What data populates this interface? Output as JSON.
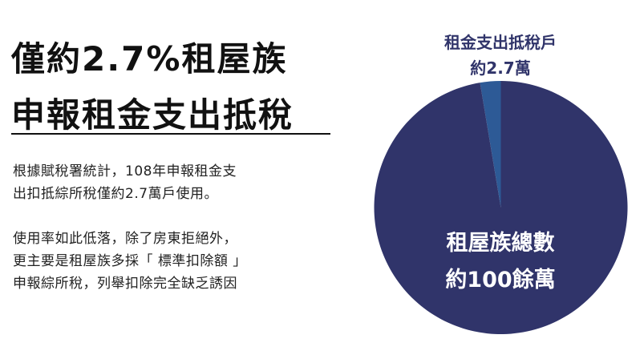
{
  "headline": {
    "line1": "僅約2.7%租屋族",
    "line2": "申報租金支出抵稅"
  },
  "paragraphs": [
    [
      "根據賦稅署統計，108年申報租金支",
      "出扣抵綜所稅僅約2.7萬戶使用。"
    ],
    [
      "使用率如此低落，除了房東拒絕外，",
      "更主要是租屋族多採「 標準扣除額 」",
      "申報綜所稅，列舉扣除完全缺乏誘因"
    ]
  ],
  "chart_data": {
    "type": "pie",
    "slices": [
      {
        "label_line1": "租金支出抵稅戶",
        "label_line2": "約2.7萬",
        "value": 2.7,
        "unit": "萬",
        "color": "#2d5a96"
      },
      {
        "label_line1": "租屋族總數",
        "label_line2": "約100餘萬",
        "value": 100,
        "unit": "萬",
        "color": "#30346a"
      }
    ]
  }
}
